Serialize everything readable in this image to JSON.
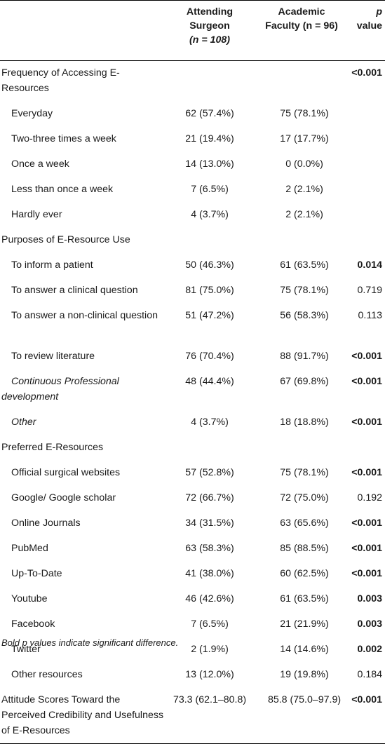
{
  "header": {
    "col1": "",
    "col2_line1": "Attending",
    "col2_line2": "Surgeon",
    "col2_line3": "(n = 108)",
    "col3_line1": "Academic",
    "col3_line2": "Faculty (n = 96)",
    "col4_line1": "p",
    "col4_line2": "value"
  },
  "rows": [
    {
      "label": "Frequency of Accessing E-Resources",
      "a": "",
      "b": "",
      "p": "<0.001",
      "bold": true,
      "indent": false,
      "italic": false
    },
    {
      "label": "Everyday",
      "a": "62 (57.4%)",
      "b": "75 (78.1%)",
      "p": "",
      "bold": false,
      "indent": true,
      "italic": false
    },
    {
      "label": "Two-three times a week",
      "a": "21 (19.4%)",
      "b": "17 (17.7%)",
      "p": "",
      "bold": false,
      "indent": true,
      "italic": false
    },
    {
      "label": "Once a week",
      "a": "14 (13.0%)",
      "b": "0 (0.0%)",
      "p": "",
      "bold": false,
      "indent": true,
      "italic": false
    },
    {
      "label": "Less than once a week",
      "a": "7 (6.5%)",
      "b": "2 (2.1%)",
      "p": "",
      "bold": false,
      "indent": true,
      "italic": false
    },
    {
      "label": "Hardly ever",
      "a": "4 (3.7%)",
      "b": "2 (2.1%)",
      "p": "",
      "bold": false,
      "indent": true,
      "italic": false
    },
    {
      "label": "Purposes of E-Resource Use",
      "a": "",
      "b": "",
      "p": "",
      "bold": false,
      "indent": false,
      "italic": false
    },
    {
      "label": "To inform a patient",
      "a": "50 (46.3%)",
      "b": "61 (63.5%)",
      "p": "0.014",
      "bold": true,
      "indent": true,
      "italic": false
    },
    {
      "label": "To answer a clinical question",
      "a": "81 (75.0%)",
      "b": "75 (78.1%)",
      "p": "0.719",
      "bold": false,
      "indent": true,
      "italic": false
    },
    {
      "label": "To answer a non-clinical question",
      "a": "51 (47.2%)",
      "b": "56 (58.3%)",
      "p": "0.113",
      "bold": false,
      "indent": true,
      "italic": false
    },
    {
      "label": "To review literature",
      "a": "76 (70.4%)",
      "b": "88 (91.7%)",
      "p": "<0.001",
      "bold": true,
      "indent": true,
      "italic": false
    },
    {
      "label": "Continuous Professional development",
      "a": "48 (44.4%)",
      "b": "67 (69.8%)",
      "p": "<0.001",
      "bold": true,
      "indent": true,
      "italic": true
    },
    {
      "label": "Other",
      "a": "4 (3.7%)",
      "b": "18 (18.8%)",
      "p": "<0.001",
      "bold": true,
      "indent": true,
      "italic": true
    },
    {
      "label": "Preferred E-Resources",
      "a": "",
      "b": "",
      "p": "",
      "bold": false,
      "indent": false,
      "italic": false
    },
    {
      "label": "Official surgical websites",
      "a": "57 (52.8%)",
      "b": "75 (78.1%)",
      "p": "<0.001",
      "bold": true,
      "indent": true,
      "italic": false
    },
    {
      "label": "Google/ Google scholar",
      "a": "72 (66.7%)",
      "b": "72 (75.0%)",
      "p": "0.192",
      "bold": false,
      "indent": true,
      "italic": false
    },
    {
      "label": "Online Journals",
      "a": "34 (31.5%)",
      "b": "63 (65.6%)",
      "p": "<0.001",
      "bold": true,
      "indent": true,
      "italic": false
    },
    {
      "label": "PubMed",
      "a": "63 (58.3%)",
      "b": "85 (88.5%)",
      "p": "<0.001",
      "bold": true,
      "indent": true,
      "italic": false
    },
    {
      "label": "Up-To-Date",
      "a": "41 (38.0%)",
      "b": "60 (62.5%)",
      "p": "<0.001",
      "bold": true,
      "indent": true,
      "italic": false
    },
    {
      "label": "Youtube",
      "a": "46 (42.6%)",
      "b": "61 (63.5%)",
      "p": "0.003",
      "bold": true,
      "indent": true,
      "italic": false
    },
    {
      "label": "Facebook",
      "a": "7 (6.5%)",
      "b": "21 (21.9%)",
      "p": "0.003",
      "bold": true,
      "indent": true,
      "italic": false
    },
    {
      "label": "Twitter",
      "a": "2 (1.9%)",
      "b": "14 (14.6%)",
      "p": "0.002",
      "bold": true,
      "indent": true,
      "italic": false
    },
    {
      "label": "Other resources",
      "a": "13 (12.0%)",
      "b": "19 (19.8%)",
      "p": "0.184",
      "bold": false,
      "indent": true,
      "italic": false
    },
    {
      "label": "Attitude Scores Toward the Perceived Credibility and Usefulness of E-Resources",
      "a": "73.3 (62.1–80.8)",
      "b": "85.8 (75.0–97.9)",
      "p": "<0.001",
      "bold": true,
      "indent": false,
      "italic": false
    }
  ],
  "footnote": "Bold p values indicate significant difference."
}
